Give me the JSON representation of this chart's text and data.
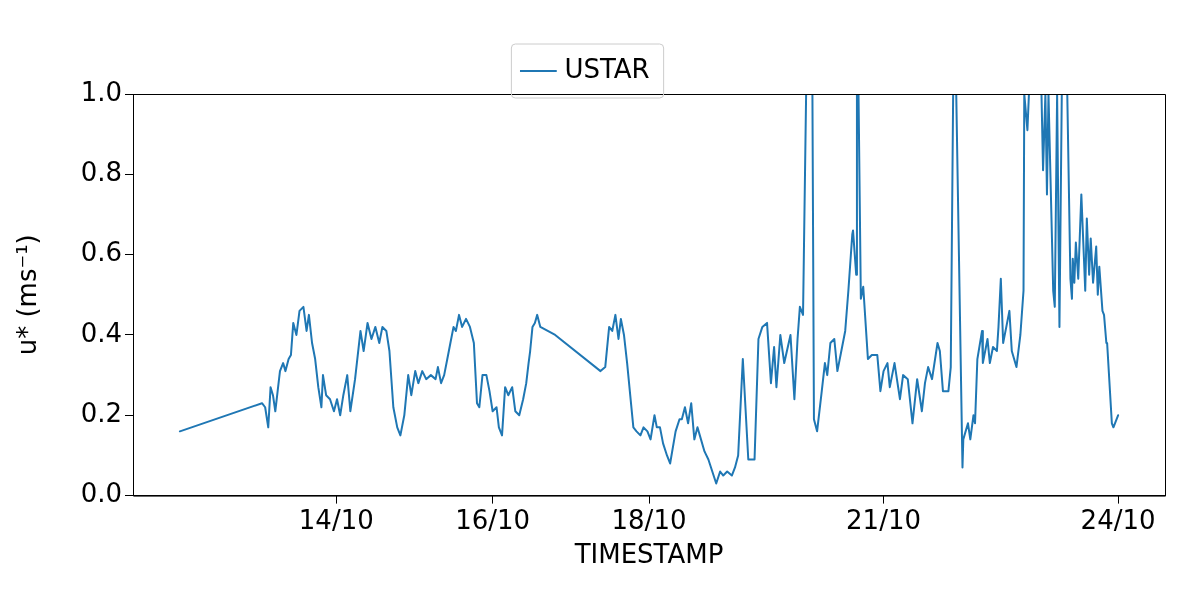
{
  "chart_data": {
    "type": "line",
    "xlabel": "TIMESTAMP",
    "ylabel": "u* (ms⁻¹)",
    "legend": "top",
    "grid": false,
    "marker": "none",
    "line_style": "solid",
    "xlim": [
      "--10-11T09:36",
      "--10-24T14:24"
    ],
    "ylim": [
      0,
      1
    ],
    "xticks": [
      {
        "value": "--10-14",
        "label": "14/10"
      },
      {
        "value": "--10-16",
        "label": "16/10"
      },
      {
        "value": "--10-18",
        "label": "18/10"
      },
      {
        "value": "--10-21",
        "label": "21/10"
      },
      {
        "value": "--10-24",
        "label": "24/10"
      }
    ],
    "yticks": [
      {
        "value": 0,
        "label": "0.0"
      },
      {
        "value": 0.2,
        "label": "0.2"
      },
      {
        "value": 0.4,
        "label": "0.4"
      },
      {
        "value": 0.6,
        "label": "0.6"
      },
      {
        "value": 0.8,
        "label": "0.8"
      },
      {
        "value": 1,
        "label": "1.0"
      }
    ],
    "series": [
      {
        "name": "USTAR",
        "color": "#1f77b4",
        "x": [
          "--10-12T00:00",
          "--10-13T01:12",
          "--10-13T02:10",
          "--10-13T03:07",
          "--10-13T03:50",
          "--10-13T04:34",
          "--10-13T05:17",
          "--10-13T06:00",
          "--10-13T06:43",
          "--10-13T07:41",
          "--10-13T08:24",
          "--10-13T09:22",
          "--10-13T10:05",
          "--10-13T10:48",
          "--10-13T11:46",
          "--10-13T12:43",
          "--10-13T13:55",
          "--10-13T14:53",
          "--10-13T15:36",
          "--10-13T16:34",
          "--10-13T17:31",
          "--10-13T18:29",
          "--10-13T19:26",
          "--10-13T19:55",
          "--10-13T20:53",
          "--10-13T22:05",
          "--10-13T23:17",
          "--10-14T00:14",
          "--10-14T01:12",
          "--10-14T02:10",
          "--10-14T03:22",
          "--10-14T04:19",
          "--10-14T05:46",
          "--10-14T07:26",
          "--10-14T08:24",
          "--10-14T09:36",
          "--10-14T10:48",
          "--10-14T12:00",
          "--10-14T13:12",
          "--10-14T14:10",
          "--10-14T15:22",
          "--10-14T16:19",
          "--10-14T17:31",
          "--10-14T18:43",
          "--10-14T19:41",
          "--10-14T20:53",
          "--10-14T22:05",
          "--10-14T23:02",
          "--10-15T00:14",
          "--10-15T01:12",
          "--10-15T02:24",
          "--10-15T03:36",
          "--10-15T05:02",
          "--10-15T06:29",
          "--10-15T07:12",
          "--10-15T08:10",
          "--10-15T09:07",
          "--10-15T10:05",
          "--10-15T11:02",
          "--10-15T12:00",
          "--10-15T12:43",
          "--10-15T13:41",
          "--10-15T14:38",
          "--10-15T15:50",
          "--10-15T17:02",
          "--10-15T18:14",
          "--10-15T19:12",
          "--10-15T19:55",
          "--10-15T20:53",
          "--10-15T22:05",
          "--10-15T23:02",
          "--10-16T00:00",
          "--10-16T01:12",
          "--10-16T01:55",
          "--10-16T02:53",
          "--10-16T03:50",
          "--10-16T04:48",
          "--10-16T06:00",
          "--10-16T06:58",
          "--10-16T08:10",
          "--10-16T09:22",
          "--10-16T10:19",
          "--10-16T11:02",
          "--10-16T11:31",
          "--10-16T12:14",
          "--10-16T12:58",
          "--10-16T13:41",
          "--10-16T14:38",
          "--10-16T19:12",
          "--10-17T09:07",
          "--10-17T10:34",
          "--10-17T11:46",
          "--10-17T12:43",
          "--10-17T13:41",
          "--10-17T14:38",
          "--10-17T15:22",
          "--10-17T16:19",
          "--10-17T17:17",
          "--10-17T18:14",
          "--10-17T19:12",
          "--10-17T20:10",
          "--10-17T21:22",
          "--10-17T22:19",
          "--10-17T23:31",
          "--10-18T00:29",
          "--10-18T01:41",
          "--10-18T02:24",
          "--10-18T03:22",
          "--10-18T04:19",
          "--10-18T05:31",
          "--10-18T06:29",
          "--10-18T08:10",
          "--10-18T09:22",
          "--10-18T10:05",
          "--10-18T11:02",
          "--10-18T12:00",
          "--10-18T12:58",
          "--10-18T13:55",
          "--10-18T14:53",
          "--10-18T15:36",
          "--10-18T17:02",
          "--10-18T18:14",
          "--10-18T19:26",
          "--10-18T20:38",
          "--10-18T21:50",
          "--10-18T22:48",
          "--10-19T00:00",
          "--10-19T01:26",
          "--10-19T02:24",
          "--10-19T03:22",
          "--10-19T04:48",
          "--10-19T06:29",
          "--10-19T08:24",
          "--10-19T09:36",
          "--10-19T10:48",
          "--10-19T12:14",
          "--10-19T13:26",
          "--10-19T14:24",
          "--10-19T15:07",
          "--10-19T16:19",
          "--10-19T17:31",
          "--10-19T19:26",
          "--10-19T20:38",
          "--10-19T21:36",
          "--10-19T22:19",
          "--10-19T23:17",
          "--10-20T00:14",
          "--10-20T02:10",
          "--10-20T02:38",
          "--10-20T03:36",
          "--10-20T05:02",
          "--10-20T06:00",
          "--10-20T06:43",
          "--10-20T07:41",
          "--10-20T08:53",
          "--10-20T09:50",
          "--10-20T10:48",
          "--10-20T12:14",
          "--10-20T13:12",
          "--10-20T14:24",
          "--10-20T14:38",
          "--10-20T15:36",
          "--10-20T15:50",
          "--10-20T16:19",
          "--10-20T17:02",
          "--10-20T17:46",
          "--10-20T19:12",
          "--10-20T20:24",
          "--10-20T22:05",
          "--10-20T23:02",
          "--10-21T00:00",
          "--10-21T01:12",
          "--10-21T01:55",
          "--10-21T03:22",
          "--10-21T05:02",
          "--10-21T06:00",
          "--10-21T07:26",
          "--10-21T08:53",
          "--10-21T10:19",
          "--10-21T11:46",
          "--10-21T12:43",
          "--10-21T13:41",
          "--10-21T14:53",
          "--10-21T16:34",
          "--10-21T17:17",
          "--10-21T18:14",
          "--10-21T19:55",
          "--10-21T20:38",
          "--10-21T21:22",
          "--10-21T22:19",
          "--10-22T00:14",
          "--10-22T00:29",
          "--10-22T01:55",
          "--10-22T02:38",
          "--10-22T03:36",
          "--10-22T04:05",
          "--10-22T04:48",
          "--10-22T06:14",
          "--10-22T06:29",
          "--10-22T07:55",
          "--10-22T08:38",
          "--10-22T09:36",
          "--10-22T10:48",
          "--10-22T11:17",
          "--10-22T12:00",
          "--10-22T12:43",
          "--10-22T13:41",
          "--10-22T14:38",
          "--10-22T15:22",
          "--10-22T16:48",
          "--10-22T18:00",
          "--10-22T18:58",
          "--10-22T19:12",
          "--10-22T20:10",
          "--10-22T20:38",
          "--10-23T00:29",
          "--10-23T00:58",
          "--10-23T01:41",
          "--10-23T02:10",
          "--10-23T02:38",
          "--10-23T04:05",
          "--10-23T04:34",
          "--10-23T05:17",
          "--10-23T06:00",
          "--10-23T06:43",
          "--10-23T08:24",
          "--10-23T09:22",
          "--10-23T09:50",
          "--10-23T10:05",
          "--10-23T10:34",
          "--10-23T11:02",
          "--10-23T11:46",
          "--10-23T12:43",
          "--10-23T13:55",
          "--10-23T14:24",
          "--10-23T15:07",
          "--10-23T15:36",
          "--10-23T16:19",
          "--10-23T17:17",
          "--10-23T17:46",
          "--10-23T18:14",
          "--10-23T19:12",
          "--10-23T19:41",
          "--10-23T20:24",
          "--10-23T20:38",
          "--10-23T22:05",
          "--10-23T22:34",
          "--10-24T00:00"
        ],
        "values": [
          0.16,
          0.23,
          0.22,
          0.17,
          0.27,
          0.25,
          0.21,
          0.26,
          0.31,
          0.33,
          0.31,
          0.34,
          0.35,
          0.43,
          0.4,
          0.46,
          0.47,
          0.41,
          0.45,
          0.38,
          0.34,
          0.27,
          0.22,
          0.3,
          0.25,
          0.24,
          0.21,
          0.24,
          0.2,
          0.25,
          0.3,
          0.21,
          0.29,
          0.41,
          0.36,
          0.43,
          0.39,
          0.42,
          0.38,
          0.42,
          0.41,
          0.36,
          0.22,
          0.17,
          0.15,
          0.2,
          0.3,
          0.25,
          0.31,
          0.28,
          0.31,
          0.29,
          0.3,
          0.29,
          0.32,
          0.28,
          0.3,
          0.34,
          0.38,
          0.42,
          0.41,
          0.45,
          0.42,
          0.44,
          0.42,
          0.38,
          0.23,
          0.22,
          0.3,
          0.3,
          0.26,
          0.21,
          0.22,
          0.17,
          0.15,
          0.27,
          0.25,
          0.27,
          0.21,
          0.2,
          0.24,
          0.28,
          0.33,
          0.36,
          0.42,
          0.43,
          0.45,
          0.42,
          0.4,
          0.31,
          0.32,
          0.42,
          0.41,
          0.45,
          0.39,
          0.44,
          0.4,
          0.33,
          0.25,
          0.17,
          0.16,
          0.15,
          0.17,
          0.16,
          0.14,
          0.2,
          0.17,
          0.17,
          0.13,
          0.1,
          0.08,
          0.16,
          0.19,
          0.19,
          0.22,
          0.18,
          0.23,
          0.14,
          0.17,
          0.15,
          0.11,
          0.09,
          0.06,
          0.03,
          0.06,
          0.05,
          0.06,
          0.05,
          0.07,
          0.1,
          0.34,
          0.09,
          0.09,
          0.39,
          0.42,
          0.43,
          0.28,
          0.37,
          0.27,
          0.4,
          0.33,
          0.4,
          0.24,
          0.39,
          0.47,
          0.45,
          1.0,
          1.0,
          0.19,
          0.16,
          0.26,
          0.33,
          0.3,
          0.38,
          0.39,
          0.31,
          0.35,
          0.41,
          0.51,
          0.65,
          0.66,
          0.55,
          1.0,
          1.0,
          0.49,
          0.52,
          0.34,
          0.35,
          0.35,
          0.26,
          0.31,
          0.33,
          0.27,
          0.33,
          0.24,
          0.3,
          0.29,
          0.18,
          0.29,
          0.21,
          0.28,
          0.32,
          0.29,
          0.38,
          0.36,
          0.26,
          0.26,
          0.32,
          1.0,
          1.0,
          0.07,
          0.14,
          0.18,
          0.14,
          0.2,
          0.18,
          0.34,
          0.41,
          0.33,
          0.39,
          0.33,
          0.37,
          0.36,
          0.42,
          0.54,
          0.38,
          0.42,
          0.46,
          0.36,
          0.32,
          0.4,
          0.51,
          1.0,
          0.91,
          1.0,
          1.0,
          0.81,
          1.0,
          0.75,
          1.0,
          0.51,
          0.47,
          1.0,
          0.42,
          1.0,
          1.0,
          0.54,
          0.49,
          0.59,
          0.53,
          0.63,
          0.54,
          0.75,
          0.51,
          0.69,
          0.55,
          0.64,
          0.53,
          0.62,
          0.5,
          0.57,
          0.46,
          0.45,
          0.38,
          0.38,
          0.18,
          0.17,
          0.2
        ]
      }
    ]
  }
}
